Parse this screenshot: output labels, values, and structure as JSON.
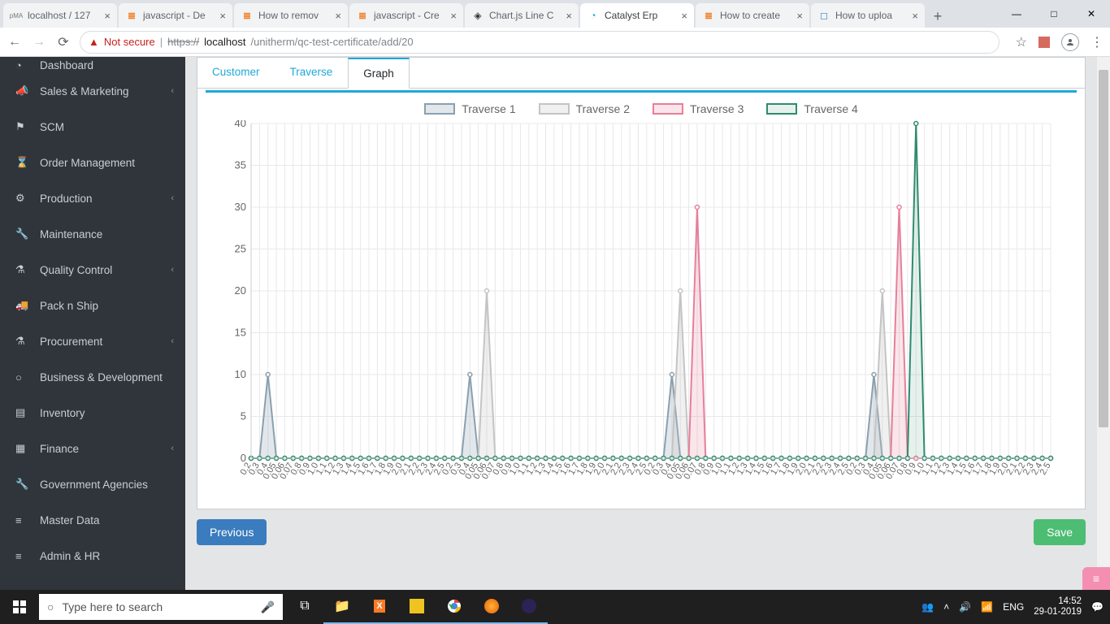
{
  "browser": {
    "tabs": [
      {
        "label": "localhost / 127",
        "favicon": "pMA",
        "active": false
      },
      {
        "label": "javascript - De",
        "favicon": "so",
        "active": false
      },
      {
        "label": "How to remov",
        "favicon": "so",
        "active": false
      },
      {
        "label": "javascript - Cre",
        "favicon": "so",
        "active": false
      },
      {
        "label": "Chart.js Line C",
        "favicon": "cp",
        "active": false
      },
      {
        "label": "Catalyst Erp",
        "favicon": "cat",
        "active": true
      },
      {
        "label": "How to create",
        "favicon": "so",
        "active": false
      },
      {
        "label": "How to uploa",
        "favicon": "sq",
        "active": false
      }
    ],
    "not_secure": "Not secure",
    "url_prefix": "https://",
    "url_host": "localhost",
    "url_path": "/unitherm/qc-test-certificate/add/20"
  },
  "sidebar": {
    "items": [
      {
        "icon": "◔",
        "label": "Dashboard",
        "expandable": false,
        "partial": true
      },
      {
        "icon": "📣",
        "label": "Sales & Marketing",
        "expandable": true
      },
      {
        "icon": "⚑",
        "label": "SCM",
        "expandable": false
      },
      {
        "icon": "⌛",
        "label": "Order Management",
        "expandable": false
      },
      {
        "icon": "⚙",
        "label": "Production",
        "expandable": true
      },
      {
        "icon": "🔧",
        "label": "Maintenance",
        "expandable": false
      },
      {
        "icon": "⚗",
        "label": "Quality Control",
        "expandable": true
      },
      {
        "icon": "🚚",
        "label": "Pack n Ship",
        "expandable": false
      },
      {
        "icon": "⚗",
        "label": "Procurement",
        "expandable": true
      },
      {
        "icon": "○",
        "label": "Business & Development",
        "expandable": false
      },
      {
        "icon": "▤",
        "label": "Inventory",
        "expandable": false
      },
      {
        "icon": "▦",
        "label": "Finance",
        "expandable": true
      },
      {
        "icon": "🔧",
        "label": "Government Agencies",
        "expandable": false
      },
      {
        "icon": "≡",
        "label": "Master Data",
        "expandable": false
      },
      {
        "icon": "≡",
        "label": "Admin & HR",
        "expandable": false
      }
    ]
  },
  "card": {
    "tabs": [
      {
        "label": "Customer",
        "active": false
      },
      {
        "label": "Traverse",
        "active": false
      },
      {
        "label": "Graph",
        "active": true
      }
    ]
  },
  "chart": {
    "type": "line",
    "background_color": "#ffffff",
    "grid_color": "#e8e8e8",
    "axis_color": "#cccccc",
    "label_color": "#666666",
    "label_fontsize": 13,
    "ylim": [
      0,
      40
    ],
    "ytick_step": 5,
    "yticks": [
      0,
      5,
      10,
      15,
      20,
      25,
      30,
      35,
      40
    ],
    "series": [
      {
        "name": "Traverse 1",
        "stroke": "#8aa0b0",
        "fill": "rgba(138,160,176,0.25)",
        "marker": "circle"
      },
      {
        "name": "Traverse 2",
        "stroke": "#c4c4c4",
        "fill": "rgba(196,196,196,0.25)",
        "marker": "circle"
      },
      {
        "name": "Traverse 3",
        "stroke": "#e77f9a",
        "fill": "rgba(231,127,154,0.2)",
        "marker": "circle"
      },
      {
        "name": "Traverse 4",
        "stroke": "#2e8b6f",
        "fill": "rgba(46,139,111,0.12)",
        "marker": "circle"
      }
    ],
    "x_block_labels": [
      "0.2",
      "0.3",
      "0.4",
      "0.05",
      "0.06",
      "0.07",
      "0.8",
      "0.9",
      "1.0",
      "1.1",
      "1.2",
      "1.3",
      "1.4",
      "1.5",
      "1.6",
      "1.7",
      "1.8",
      "1.9",
      "2.0",
      "2.1",
      "2.2",
      "2.3",
      "2.4",
      "2.5"
    ],
    "point_count": 96,
    "peaks": {
      "t1": [
        {
          "i": 2,
          "v": 10
        },
        {
          "i": 26,
          "v": 10
        },
        {
          "i": 50,
          "v": 10
        },
        {
          "i": 74,
          "v": 10
        }
      ],
      "t2": [
        {
          "i": 28,
          "v": 20
        },
        {
          "i": 51,
          "v": 20
        },
        {
          "i": 75,
          "v": 20
        }
      ],
      "t3": [
        {
          "i": 53,
          "v": 30
        },
        {
          "i": 77,
          "v": 30
        }
      ],
      "t4": [
        {
          "i": 79,
          "v": 40
        }
      ]
    }
  },
  "buttons": {
    "previous": "Previous",
    "save": "Save"
  },
  "taskbar": {
    "search_placeholder": "Type here to search",
    "lang": "ENG",
    "time": "14:52",
    "date": "29-01-2019"
  }
}
